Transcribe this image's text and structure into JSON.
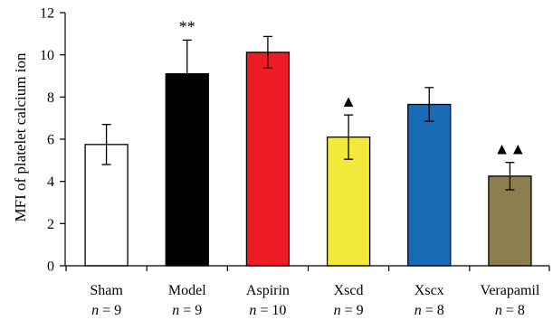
{
  "chart_data": {
    "type": "bar",
    "ylabel": "MFI of platelet calcium ion",
    "xlabel": "",
    "ylim": [
      0,
      12
    ],
    "yticks": [
      "0",
      "2",
      "4",
      "6",
      "8",
      "10",
      "12"
    ],
    "ytick_values": [
      0,
      2,
      4,
      6,
      8,
      10,
      12
    ],
    "grid": false,
    "categories": [
      "Sham",
      "Model",
      "Aspirin",
      "Xscd",
      "Xscx",
      "Verapamil"
    ],
    "n_labels": [
      "n = 9",
      "n = 9",
      "n = 10",
      "n = 9",
      "n = 8",
      "n = 8"
    ],
    "values": [
      5.75,
      9.1,
      10.12,
      6.1,
      7.65,
      4.25
    ],
    "errors": [
      0.95,
      1.6,
      0.75,
      1.05,
      0.8,
      0.65
    ],
    "annotations": [
      "",
      "**",
      "",
      "▲",
      "",
      "▲▲"
    ],
    "colors": [
      "#ffffff",
      "#000000",
      "#ed1c24",
      "#f2e93b",
      "#1a6bb5",
      "#8c7e4e"
    ],
    "edge_color": "#000000"
  }
}
